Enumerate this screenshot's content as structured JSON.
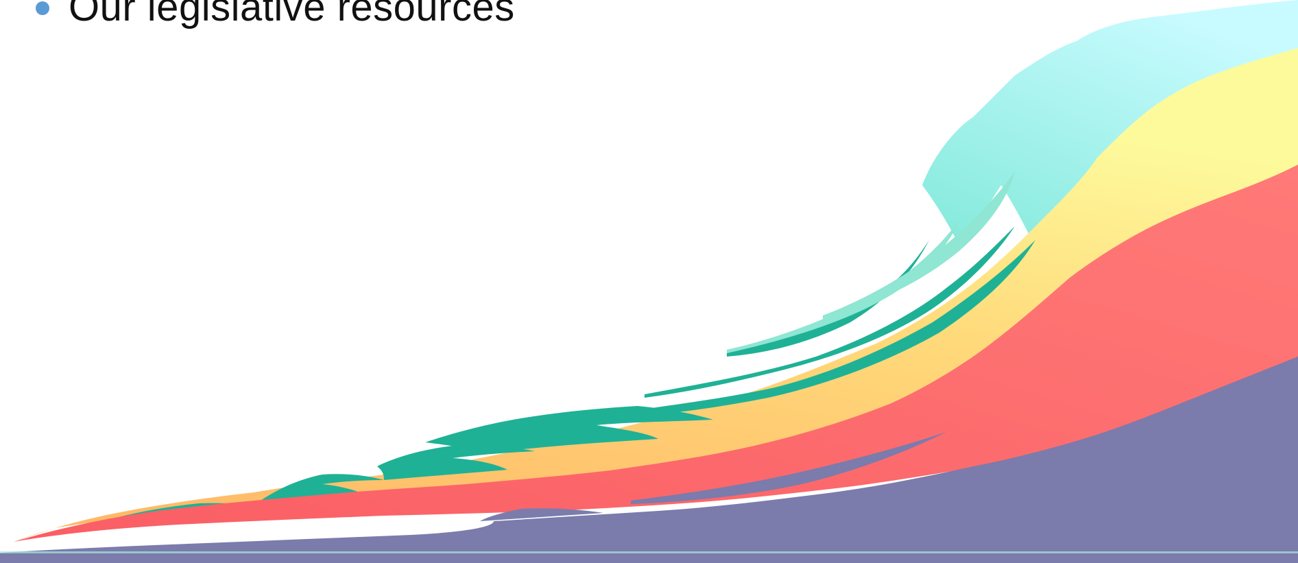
{
  "bullet": {
    "text": "Our legislative resources",
    "dot_color": "#5b9bd5"
  },
  "graphic": {
    "name": "rainbow-wave",
    "colors": [
      "#7b7bac",
      "#fb6b6e",
      "#ffc070",
      "#fdf490",
      "#26b49b",
      "#9ff4f0"
    ]
  }
}
